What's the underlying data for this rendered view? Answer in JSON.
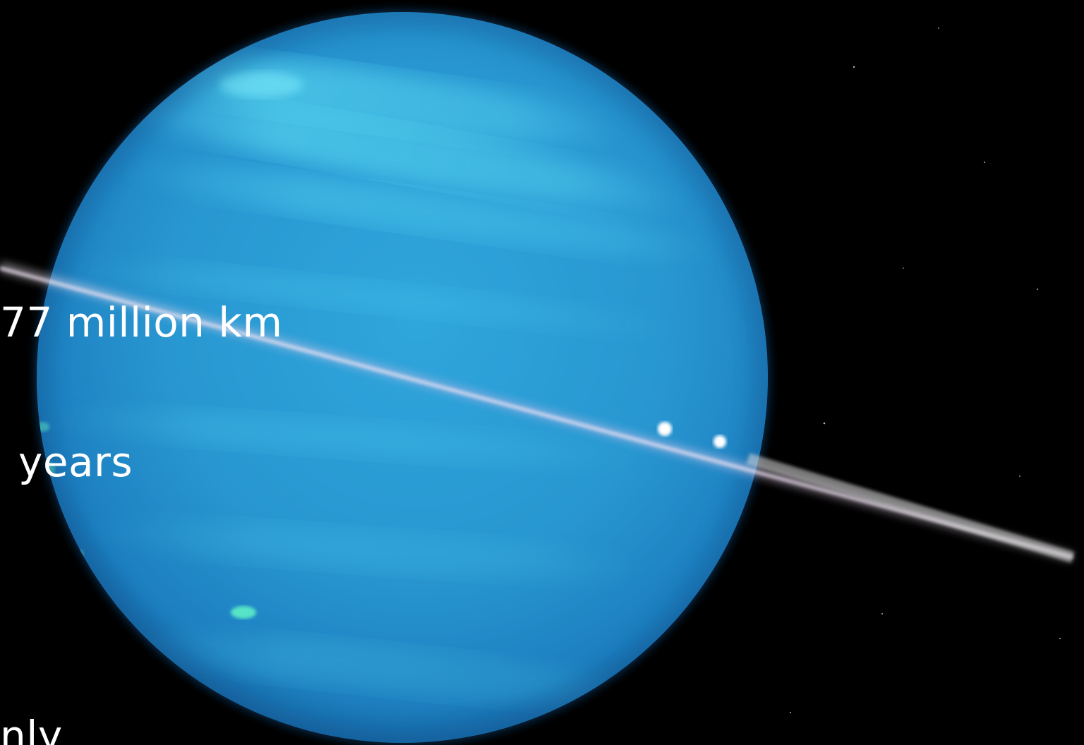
{
  "overlay_text": {
    "distance_fragment": "77 million km",
    "years_fragment": "years",
    "only_fragment": "nly"
  },
  "colors": {
    "background": "#000000",
    "planet_base": "#2a9fd4",
    "planet_limb": "#1a6fae",
    "planet_highlight": "#4fd2f0",
    "ring": "#e8d8f0",
    "text": "#ffffff"
  },
  "scene": {
    "subject": "planet with edge-on ring"
  }
}
